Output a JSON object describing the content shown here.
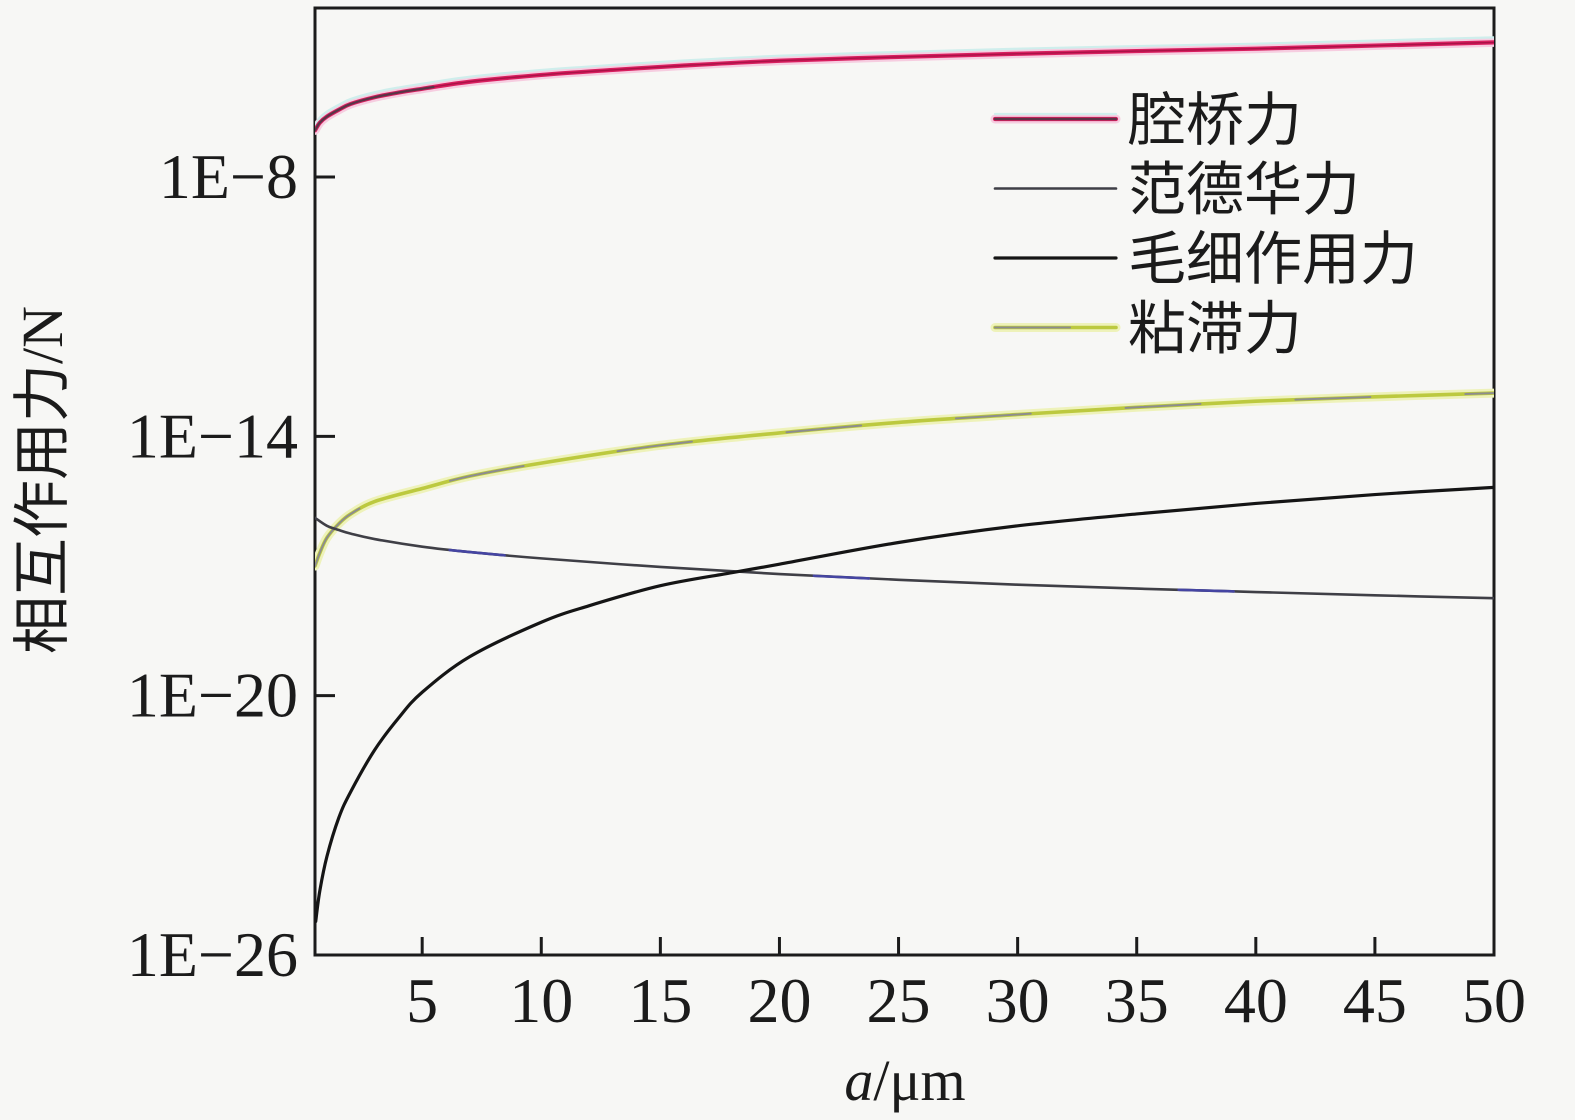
{
  "figure": {
    "background": "#f7f7f5",
    "frame_color": "#1b1b1b"
  },
  "chart_data": {
    "type": "line",
    "title": "",
    "xlabel": "a/μm",
    "xlabel_parts": {
      "italic": "a",
      "rest": "/μm"
    },
    "ylabel": "相互作用力/N",
    "x_axis": {
      "min": 0.5,
      "max": 50,
      "scale": "linear",
      "ticks": [
        5,
        10,
        15,
        20,
        25,
        30,
        35,
        40,
        45,
        50
      ]
    },
    "y_axis": {
      "scale": "log",
      "min": 1e-26,
      "max": 0.0001,
      "ticks": [
        {
          "label": "1E−8",
          "value": 1e-08
        },
        {
          "label": "1E−14",
          "value": 1e-14
        },
        {
          "label": "1E−20",
          "value": 1e-20
        },
        {
          "label": "1E−26",
          "value": 1e-26
        }
      ]
    },
    "grid": false,
    "legend_position": "upper-right-inside",
    "series": [
      {
        "id": "viscous-force",
        "name": "粘滞力",
        "legend_color": "#8d8d8d",
        "strokes": [
          {
            "color": "#eef2ba",
            "width": 9
          },
          {
            "color": "#bcc93f",
            "width": 3.6
          },
          {
            "color": "#8d8d8d",
            "width": 2.0,
            "dash": "75 95"
          }
        ],
        "points": [
          [
            0.5,
            1e-17
          ],
          [
            0.7,
            2e-17
          ],
          [
            1,
            4.5e-17
          ],
          [
            1.5,
            9.5e-17
          ],
          [
            2,
            1.6e-16
          ],
          [
            3,
            3.1e-16
          ],
          [
            5,
            6.2e-16
          ],
          [
            7,
            1.2e-15
          ],
          [
            10,
            2.4e-15
          ],
          [
            15,
            6.2e-15
          ],
          [
            20,
            1.2e-14
          ],
          [
            25,
            2.1e-14
          ],
          [
            30,
            3.2e-14
          ],
          [
            35,
            4.7e-14
          ],
          [
            40,
            6.5e-14
          ],
          [
            45,
            8.2e-14
          ],
          [
            50,
            1e-13
          ]
        ]
      },
      {
        "id": "van-der-waals-force",
        "name": "范德华力",
        "legend_color": "#3f3f46",
        "strokes": [
          {
            "color": "#3f3f46",
            "width": 2.6
          },
          {
            "color": "#4545a2",
            "width": 2.6,
            "dash": "55 310",
            "offset": -140
          }
        ],
        "points": [
          [
            0.5,
            1.3e-16
          ],
          [
            1,
            8.5e-17
          ],
          [
            1.5,
            6.8e-17
          ],
          [
            2,
            5.6e-17
          ],
          [
            3,
            4.2e-17
          ],
          [
            5,
            2.8e-17
          ],
          [
            7,
            2.1e-17
          ],
          [
            10,
            1.5e-17
          ],
          [
            15,
            9.5e-18
          ],
          [
            20,
            6.5e-18
          ],
          [
            25,
            4.8e-18
          ],
          [
            30,
            3.7e-18
          ],
          [
            35,
            3e-18
          ],
          [
            40,
            2.5e-18
          ],
          [
            45,
            2.1e-18
          ],
          [
            50,
            1.8e-18
          ]
        ]
      },
      {
        "id": "capillary-force",
        "name": "毛细作用力",
        "legend_color": "#151515",
        "strokes": [
          {
            "color": "#151515",
            "width": 3.2
          }
        ],
        "points": [
          [
            0.53,
            6e-26
          ],
          [
            0.7,
            3e-25
          ],
          [
            1,
            1.9e-24
          ],
          [
            1.5,
            1.5e-23
          ],
          [
            2,
            6e-23
          ],
          [
            3,
            5.5e-22
          ],
          [
            4,
            3e-21
          ],
          [
            5,
            1.2e-20
          ],
          [
            7,
            8e-20
          ],
          [
            10,
            5e-19
          ],
          [
            12,
            1.2e-18
          ],
          [
            15,
            3.5e-18
          ],
          [
            18,
            7e-18
          ],
          [
            20,
            1.1e-17
          ],
          [
            25,
            3.5e-17
          ],
          [
            30,
            8.5e-17
          ],
          [
            35,
            1.6e-16
          ],
          [
            40,
            2.8e-16
          ],
          [
            45,
            4.5e-16
          ],
          [
            50,
            6.6e-16
          ]
        ]
      },
      {
        "id": "cavity-bridge-force",
        "name": "腔桥力",
        "legend_color": "#d91e5f",
        "strokes": [
          {
            "color": "#f6cde0",
            "width": 9
          },
          {
            "color": "#cfeeec",
            "width": 2.2,
            "dy": -5
          },
          {
            "color": "#d91e5f",
            "width": 4.2
          },
          {
            "color": "#a91247",
            "width": 1.4
          },
          {
            "color": "#3f3f46",
            "width": 2.4,
            "dash": "130 4000",
            "opacity": 0.75
          }
        ],
        "points": [
          [
            0.5,
            1.2e-07
          ],
          [
            0.7,
            1.8e-07
          ],
          [
            1,
            2.5e-07
          ],
          [
            1.5,
            3.6e-07
          ],
          [
            2,
            4.9e-07
          ],
          [
            3,
            7e-07
          ],
          [
            4,
            9e-07
          ],
          [
            5,
            1.1e-06
          ],
          [
            7,
            1.6e-06
          ],
          [
            10,
            2.3e-06
          ],
          [
            13,
            3e-06
          ],
          [
            16,
            3.8e-06
          ],
          [
            20,
            4.9e-06
          ],
          [
            25,
            6e-06
          ],
          [
            30,
            7.1e-06
          ],
          [
            35,
            8.2e-06
          ],
          [
            40,
            9.3e-06
          ],
          [
            45,
            1.1e-05
          ],
          [
            50,
            1.3e-05
          ]
        ]
      }
    ],
    "legend_order": [
      "cavity-bridge-force",
      "van-der-waals-force",
      "capillary-force",
      "viscous-force"
    ]
  }
}
